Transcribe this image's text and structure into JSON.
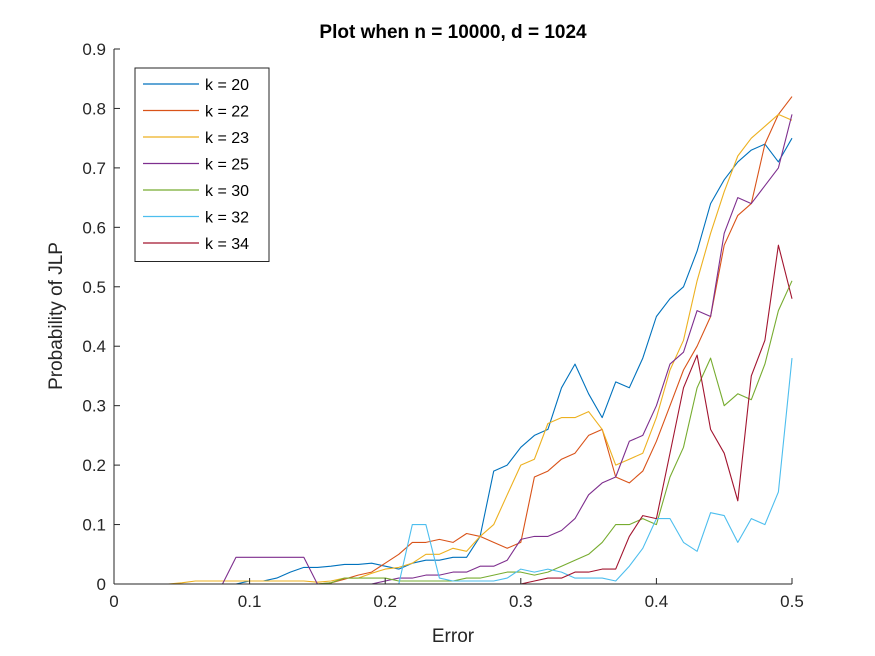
{
  "chart_data": {
    "type": "line",
    "title": "Plot when n = 10000, d = 1024",
    "xlabel": "Error",
    "ylabel": "Probability of JLP",
    "xlim": [
      0,
      0.5
    ],
    "ylim": [
      0,
      0.9
    ],
    "xticks": [
      "0",
      "0.1",
      "0.2",
      "0.3",
      "0.4",
      "0.5"
    ],
    "yticks": [
      "0",
      "0.1",
      "0.2",
      "0.3",
      "0.4",
      "0.5",
      "0.6",
      "0.7",
      "0.8",
      "0.9"
    ],
    "grid": false,
    "legend_position": "top-left",
    "x": [
      0.01,
      0.02,
      0.03,
      0.04,
      0.05,
      0.06,
      0.07,
      0.08,
      0.09,
      0.1,
      0.11,
      0.12,
      0.13,
      0.14,
      0.15,
      0.16,
      0.17,
      0.18,
      0.19,
      0.2,
      0.21,
      0.22,
      0.23,
      0.24,
      0.25,
      0.26,
      0.27,
      0.28,
      0.29,
      0.3,
      0.31,
      0.32,
      0.33,
      0.34,
      0.35,
      0.36,
      0.37,
      0.38,
      0.39,
      0.4,
      0.41,
      0.42,
      0.43,
      0.44,
      0.45,
      0.46,
      0.47,
      0.48,
      0.49,
      0.5
    ],
    "series": [
      {
        "name": "k = 20",
        "color": "#0072BD",
        "values": [
          0,
          0,
          0,
          0,
          0,
          0,
          0,
          0,
          0,
          0.005,
          0.005,
          0.01,
          0.02,
          0.028,
          0.028,
          0.03,
          0.033,
          0.033,
          0.035,
          0.03,
          0.025,
          0.035,
          0.04,
          0.04,
          0.045,
          0.045,
          0.08,
          0.19,
          0.2,
          0.23,
          0.25,
          0.26,
          0.33,
          0.37,
          0.32,
          0.28,
          0.34,
          0.33,
          0.38,
          0.45,
          0.48,
          0.5,
          0.56,
          0.64,
          0.68,
          0.71,
          0.73,
          0.74,
          0.71,
          0.75
        ]
      },
      {
        "name": "k = 22",
        "color": "#D95319",
        "values": [
          0,
          0,
          0,
          0,
          0,
          0,
          0,
          0,
          0,
          0,
          0,
          0,
          0,
          0,
          0,
          0.002,
          0.008,
          0.015,
          0.02,
          0.035,
          0.05,
          0.07,
          0.07,
          0.075,
          0.07,
          0.085,
          0.08,
          0.07,
          0.06,
          0.07,
          0.18,
          0.19,
          0.21,
          0.22,
          0.25,
          0.26,
          0.18,
          0.17,
          0.19,
          0.24,
          0.3,
          0.36,
          0.4,
          0.45,
          0.57,
          0.62,
          0.64,
          0.74,
          0.79,
          0.82
        ]
      },
      {
        "name": "k = 23",
        "color": "#EDB120",
        "values": [
          0,
          0,
          0,
          0,
          0.002,
          0.005,
          0.005,
          0.005,
          0.005,
          0.005,
          0.005,
          0.005,
          0.005,
          0.005,
          0.003,
          0.005,
          0.01,
          0.01,
          0.018,
          0.025,
          0.028,
          0.035,
          0.05,
          0.05,
          0.06,
          0.055,
          0.08,
          0.1,
          0.15,
          0.2,
          0.21,
          0.27,
          0.28,
          0.28,
          0.29,
          0.26,
          0.2,
          0.21,
          0.22,
          0.28,
          0.36,
          0.41,
          0.51,
          0.59,
          0.66,
          0.72,
          0.75,
          0.77,
          0.79,
          0.78
        ]
      },
      {
        "name": "k = 25",
        "color": "#7E2F8E",
        "values": [
          0,
          0,
          0,
          0,
          0,
          0,
          0,
          0,
          0.045,
          0.045,
          0.045,
          0.045,
          0.045,
          0.045,
          0,
          0,
          0,
          0,
          0,
          0.005,
          0.01,
          0.01,
          0.015,
          0.015,
          0.02,
          0.02,
          0.03,
          0.03,
          0.04,
          0.075,
          0.08,
          0.08,
          0.09,
          0.11,
          0.15,
          0.17,
          0.18,
          0.24,
          0.25,
          0.3,
          0.37,
          0.39,
          0.46,
          0.45,
          0.59,
          0.65,
          0.64,
          0.67,
          0.7,
          0.79
        ]
      },
      {
        "name": "k = 30",
        "color": "#77AC30",
        "values": [
          0,
          0,
          0,
          0,
          0,
          0,
          0,
          0,
          0,
          0,
          0,
          0,
          0,
          0,
          0,
          0.002,
          0.01,
          0.01,
          0.01,
          0.01,
          0.005,
          0.005,
          0.005,
          0.005,
          0.005,
          0.01,
          0.01,
          0.015,
          0.02,
          0.02,
          0.015,
          0.02,
          0.03,
          0.04,
          0.05,
          0.07,
          0.1,
          0.1,
          0.11,
          0.1,
          0.18,
          0.23,
          0.33,
          0.38,
          0.3,
          0.32,
          0.31,
          0.37,
          0.46,
          0.51
        ]
      },
      {
        "name": "k = 32",
        "color": "#4DBEEE",
        "values": [
          0,
          0,
          0,
          0,
          0,
          0,
          0,
          0,
          0,
          0,
          0,
          0,
          0,
          0,
          0,
          0,
          0,
          0,
          0,
          0,
          0,
          0.1,
          0.1,
          0.01,
          0.005,
          0.005,
          0.005,
          0.005,
          0.01,
          0.025,
          0.02,
          0.025,
          0.02,
          0.01,
          0.01,
          0.01,
          0.005,
          0.03,
          0.06,
          0.11,
          0.11,
          0.07,
          0.055,
          0.12,
          0.115,
          0.07,
          0.11,
          0.1,
          0.155,
          0.38
        ]
      },
      {
        "name": "k = 34",
        "color": "#A2142F",
        "values": [
          0,
          0,
          0,
          0,
          0,
          0,
          0,
          0,
          0,
          0,
          0,
          0,
          0,
          0,
          0,
          0,
          0,
          0,
          0,
          0,
          0,
          0,
          0,
          0,
          0,
          0,
          0,
          0,
          0,
          0,
          0.005,
          0.01,
          0.01,
          0.02,
          0.02,
          0.025,
          0.025,
          0.08,
          0.115,
          0.11,
          0.22,
          0.33,
          0.385,
          0.26,
          0.22,
          0.14,
          0.35,
          0.41,
          0.57,
          0.48
        ]
      }
    ]
  }
}
